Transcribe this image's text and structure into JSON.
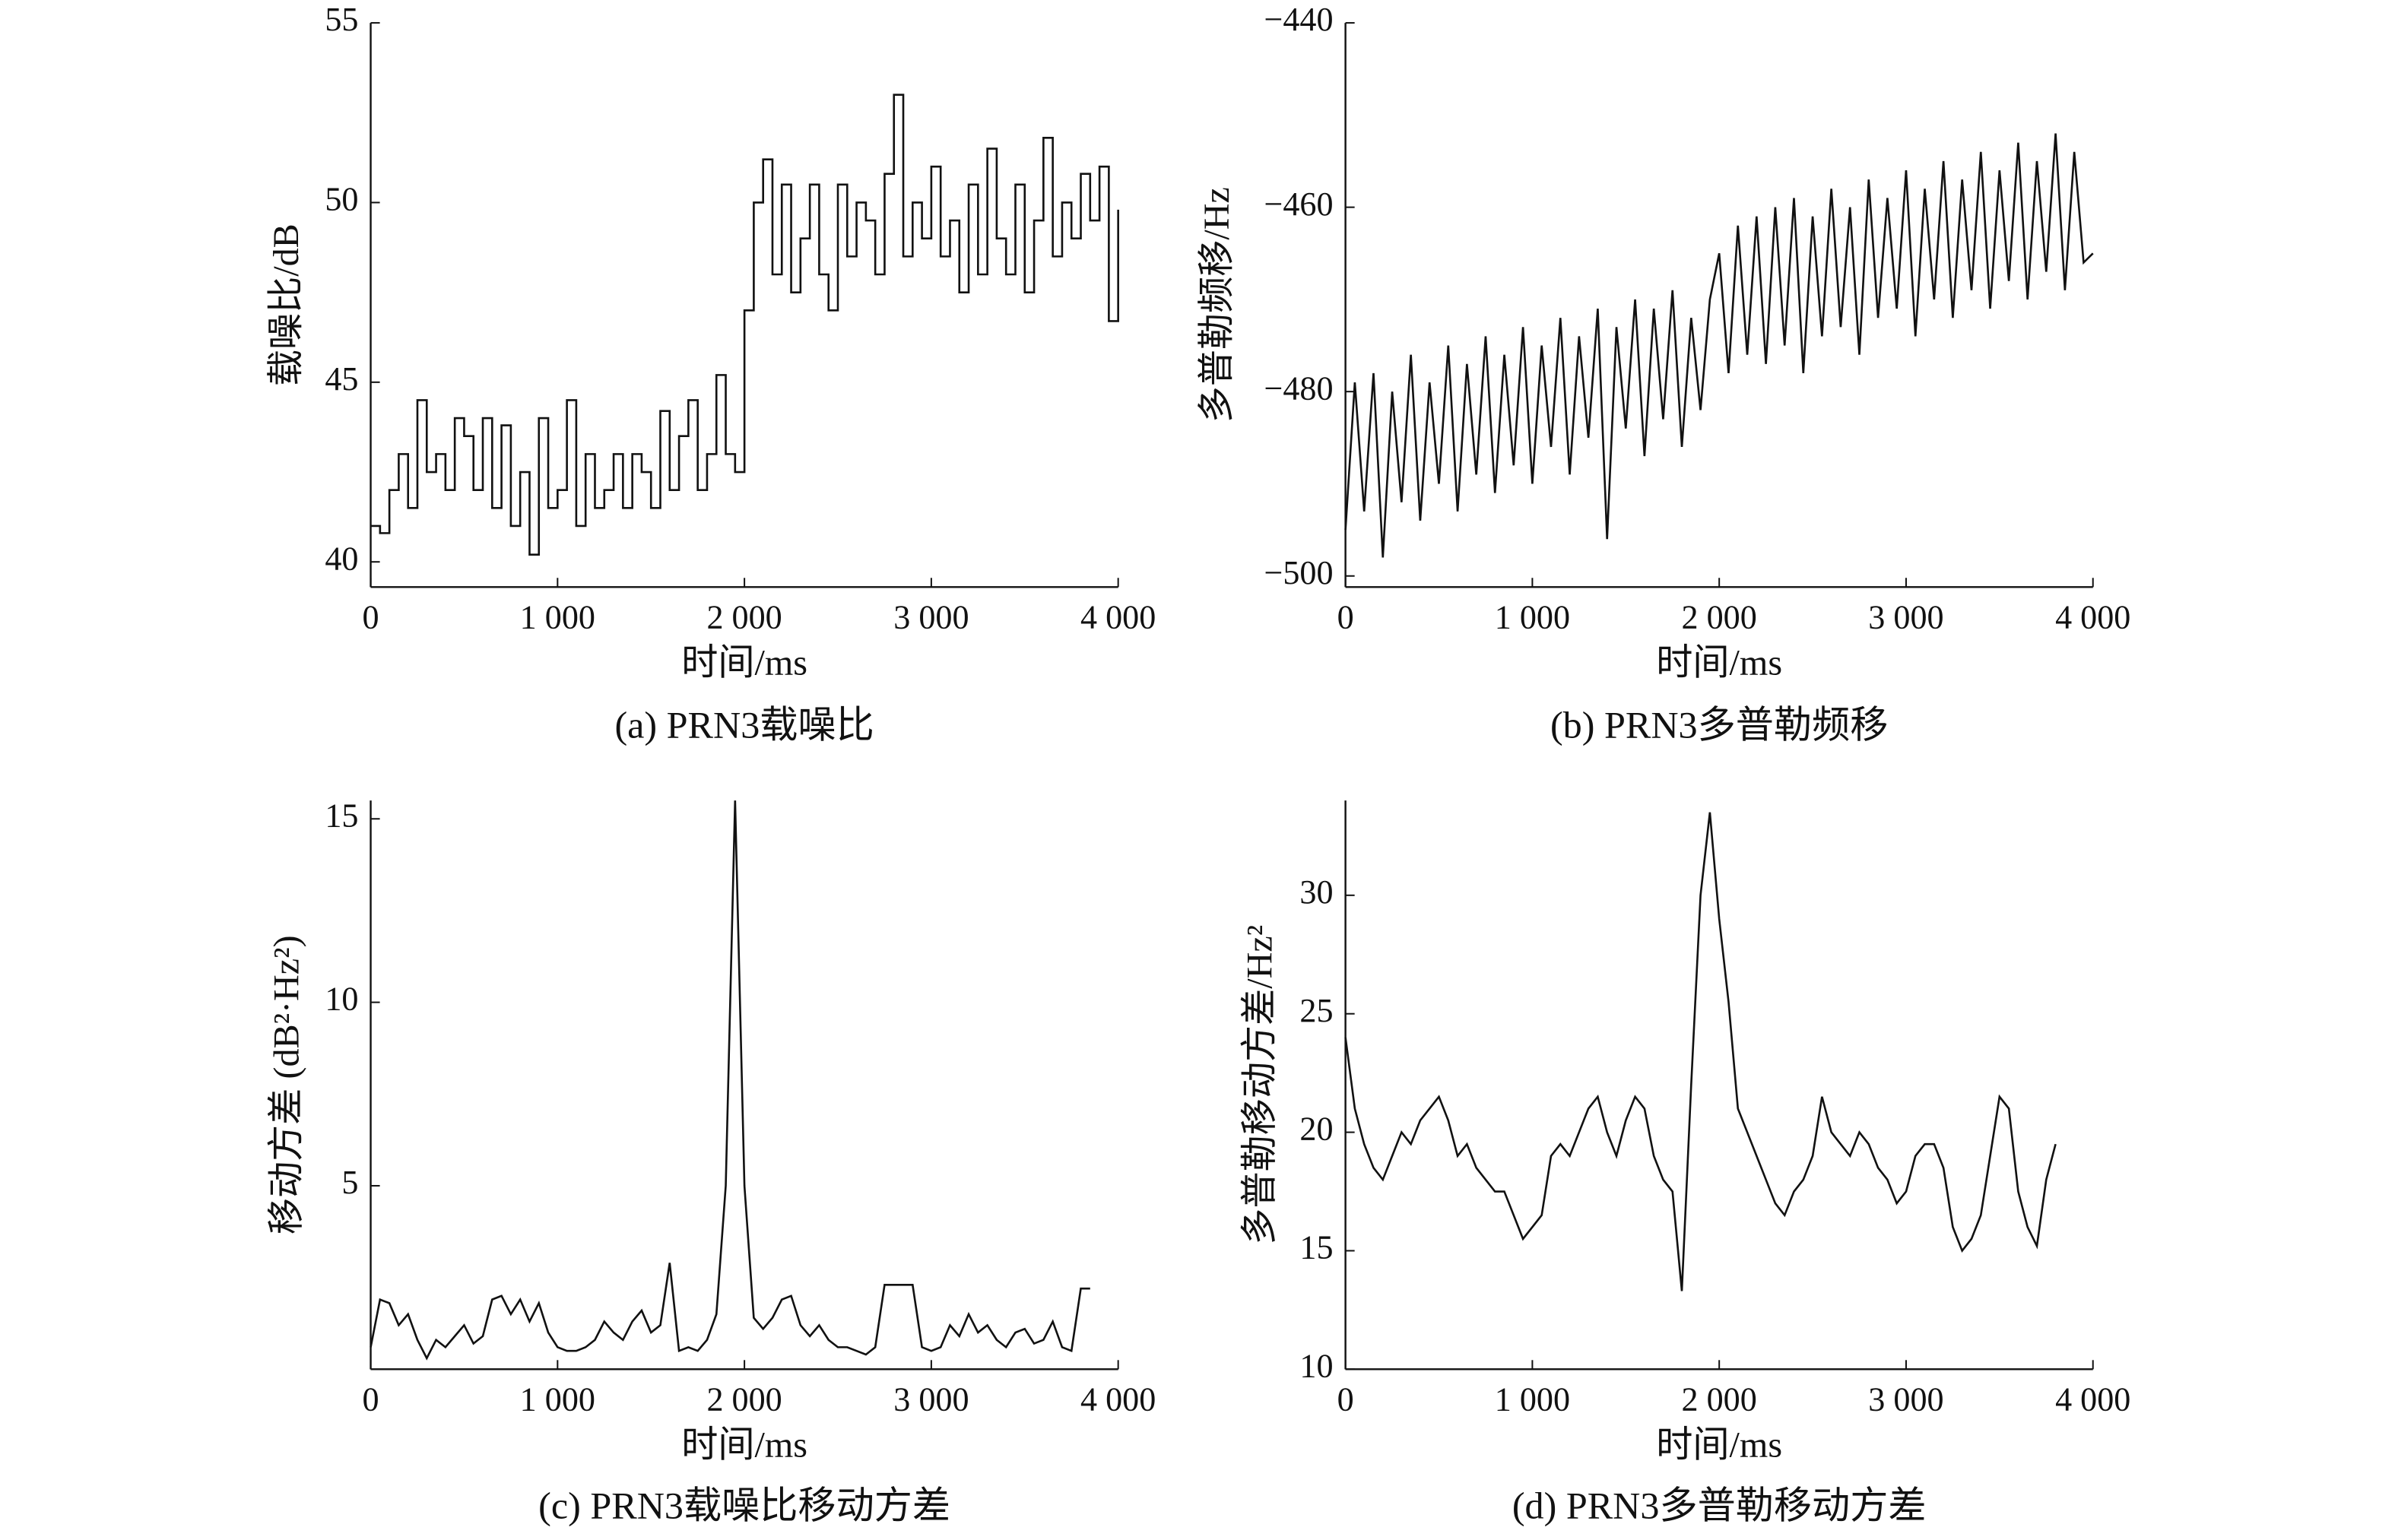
{
  "chart_data": [
    {
      "type": "line",
      "step": true,
      "color": "#111",
      "caption": "(a) PRN3载噪比",
      "xlabel": "时间/ms",
      "ylabel": "载噪比/dB",
      "xlim": [
        0,
        4000
      ],
      "ylim": [
        39.3,
        55
      ],
      "xticks": [
        0,
        {
          "value": 1000,
          "label": "1 000"
        },
        {
          "value": 2000,
          "label": "2 000"
        },
        {
          "value": 3000,
          "label": "3 000"
        },
        {
          "value": 4000,
          "label": "4 000"
        }
      ],
      "yticks": [
        40,
        45,
        50,
        55
      ],
      "series": [
        {
          "name": null,
          "color": "#111",
          "x": [
            0,
            50,
            100,
            150,
            200,
            250,
            300,
            350,
            400,
            450,
            500,
            550,
            600,
            650,
            700,
            750,
            800,
            850,
            900,
            950,
            1000,
            1050,
            1100,
            1150,
            1200,
            1250,
            1300,
            1350,
            1400,
            1450,
            1500,
            1550,
            1600,
            1650,
            1700,
            1750,
            1800,
            1850,
            1900,
            1950,
            2000,
            2050,
            2100,
            2150,
            2200,
            2250,
            2300,
            2350,
            2400,
            2450,
            2500,
            2550,
            2600,
            2650,
            2700,
            2750,
            2800,
            2850,
            2900,
            2950,
            3000,
            3050,
            3100,
            3150,
            3200,
            3250,
            3300,
            3350,
            3400,
            3450,
            3500,
            3550,
            3600,
            3650,
            3700,
            3750,
            3800,
            3850,
            3900,
            3950,
            4000
          ],
          "values": [
            41,
            40.8,
            42,
            43,
            41.5,
            44.5,
            42.5,
            43,
            42,
            44,
            43.5,
            42,
            44,
            41.5,
            43.8,
            41,
            42.5,
            40.2,
            44,
            41.5,
            42,
            44.5,
            41,
            43,
            41.5,
            42,
            43,
            41.5,
            43,
            42.5,
            41.5,
            44.2,
            42,
            43.5,
            44.5,
            42,
            43,
            45.2,
            43,
            42.5,
            47,
            50,
            51.2,
            48,
            50.5,
            47.5,
            49,
            50.5,
            48,
            47,
            50.5,
            48.5,
            50,
            49.5,
            48,
            50.8,
            53,
            48.5,
            50,
            49,
            51,
            48.5,
            49.5,
            47.5,
            50.5,
            48,
            51.5,
            49,
            48,
            50.5,
            47.5,
            49.5,
            51.8,
            48.5,
            50,
            49,
            50.8,
            49.5,
            51,
            46.7,
            49.8
          ]
        }
      ]
    },
    {
      "type": "line",
      "color": "#111",
      "caption": "(b) PRN3多普勒频移",
      "xlabel": "时间/ms",
      "ylabel": "多普勒频移/Hz",
      "xlim": [
        0,
        4000
      ],
      "ylim": [
        -501.2,
        -440
      ],
      "xticks": [
        0,
        {
          "value": 1000,
          "label": "1 000"
        },
        {
          "value": 2000,
          "label": "2 000"
        },
        {
          "value": 3000,
          "label": "3 000"
        },
        {
          "value": 4000,
          "label": "4 000"
        }
      ],
      "yticks": [
        {
          "value": -500,
          "label": "−500"
        },
        {
          "value": -480,
          "label": "−480"
        },
        {
          "value": -460,
          "label": "−460"
        },
        {
          "value": -440,
          "label": "−440"
        }
      ],
      "series": [
        {
          "name": null,
          "color": "#111",
          "x": [
            0,
            50,
            100,
            150,
            200,
            250,
            300,
            350,
            400,
            450,
            500,
            550,
            600,
            650,
            700,
            750,
            800,
            850,
            900,
            950,
            1000,
            1050,
            1100,
            1150,
            1200,
            1250,
            1300,
            1350,
            1400,
            1450,
            1500,
            1550,
            1600,
            1650,
            1700,
            1750,
            1800,
            1850,
            1900,
            1950,
            2000,
            2050,
            2100,
            2150,
            2200,
            2250,
            2300,
            2350,
            2400,
            2450,
            2500,
            2550,
            2600,
            2650,
            2700,
            2750,
            2800,
            2850,
            2900,
            2950,
            3000,
            3050,
            3100,
            3150,
            3200,
            3250,
            3300,
            3350,
            3400,
            3450,
            3500,
            3550,
            3600,
            3650,
            3700,
            3750,
            3800,
            3850,
            3900,
            3950,
            4000
          ],
          "values": [
            -495,
            -479,
            -493,
            -478,
            -498,
            -480,
            -492,
            -476,
            -494,
            -479,
            -490,
            -475,
            -493,
            -477,
            -489,
            -474,
            -491,
            -476,
            -488,
            -473,
            -490,
            -475,
            -486,
            -472,
            -489,
            -474,
            -485,
            -471,
            -496,
            -473,
            -484,
            -470,
            -487,
            -471,
            -483,
            -469,
            -486,
            -472,
            -482,
            -470,
            -465,
            -478,
            -462,
            -476,
            -461,
            -477,
            -460,
            -475,
            -459,
            -478,
            -461,
            -474,
            -458,
            -473,
            -460,
            -476,
            -457,
            -472,
            -459,
            -471,
            -456,
            -474,
            -458,
            -470,
            -455,
            -472,
            -457,
            -469,
            -454,
            -471,
            -456,
            -468,
            -453,
            -470,
            -455,
            -467,
            -452,
            -469,
            -454,
            -466,
            -465
          ]
        }
      ]
    },
    {
      "type": "line",
      "color": "#111",
      "caption": "(c) PRN3载噪比移动方差",
      "xlabel": "时间/ms",
      "ylabel": "移动方差 (dB²·Hz²)",
      "xlim": [
        0,
        4000
      ],
      "ylim": [
        0,
        15.5
      ],
      "xticks": [
        0,
        {
          "value": 1000,
          "label": "1 000"
        },
        {
          "value": 2000,
          "label": "2 000"
        },
        {
          "value": 3000,
          "label": "3 000"
        },
        {
          "value": 4000,
          "label": "4 000"
        }
      ],
      "yticks": [
        5,
        10,
        15
      ],
      "series": [
        {
          "name": null,
          "color": "#111",
          "x": [
            0,
            50,
            100,
            150,
            200,
            250,
            300,
            350,
            400,
            450,
            500,
            550,
            600,
            650,
            700,
            750,
            800,
            850,
            900,
            950,
            1000,
            1050,
            1100,
            1150,
            1200,
            1250,
            1300,
            1350,
            1400,
            1450,
            1500,
            1550,
            1600,
            1650,
            1700,
            1750,
            1800,
            1850,
            1900,
            1950,
            2000,
            2050,
            2100,
            2150,
            2200,
            2250,
            2300,
            2350,
            2400,
            2450,
            2500,
            2550,
            2600,
            2650,
            2700,
            2750,
            2800,
            2850,
            2900,
            2950,
            3000,
            3050,
            3100,
            3150,
            3200,
            3250,
            3300,
            3350,
            3400,
            3450,
            3500,
            3550,
            3600,
            3650,
            3700,
            3750,
            3800,
            3850
          ],
          "values": [
            0.6,
            1.9,
            1.8,
            1.2,
            1.5,
            0.8,
            0.3,
            0.8,
            0.6,
            0.9,
            1.2,
            0.7,
            0.9,
            1.9,
            2.0,
            1.5,
            1.9,
            1.3,
            1.8,
            1.0,
            0.6,
            0.5,
            0.5,
            0.6,
            0.8,
            1.3,
            1.0,
            0.8,
            1.3,
            1.6,
            1.0,
            1.2,
            2.9,
            0.5,
            0.6,
            0.5,
            0.8,
            1.5,
            5,
            15.5,
            5,
            1.4,
            1.1,
            1.4,
            1.9,
            2.0,
            1.2,
            0.9,
            1.2,
            0.8,
            0.6,
            0.6,
            0.5,
            0.4,
            0.6,
            2.3,
            2.3,
            2.3,
            2.3,
            0.6,
            0.5,
            0.6,
            1.2,
            0.9,
            1.5,
            1.0,
            1.2,
            0.8,
            0.6,
            1.0,
            1.1,
            0.7,
            0.8,
            1.3,
            0.6,
            0.5,
            2.2,
            2.2
          ]
        }
      ]
    },
    {
      "type": "line",
      "color": "#111",
      "caption": "(d) PRN3多普勒移动方差",
      "xlabel": "时间/ms",
      "ylabel": "多普勒移动方差/Hz²",
      "xlim": [
        0,
        4000
      ],
      "ylim": [
        10,
        34
      ],
      "xticks": [
        0,
        {
          "value": 1000,
          "label": "1 000"
        },
        {
          "value": 2000,
          "label": "2 000"
        },
        {
          "value": 3000,
          "label": "3 000"
        },
        {
          "value": 4000,
          "label": "4 000"
        }
      ],
      "yticks": [
        10,
        15,
        20,
        25,
        30
      ],
      "series": [
        {
          "name": null,
          "color": "#111",
          "x": [
            0,
            50,
            100,
            150,
            200,
            250,
            300,
            350,
            400,
            450,
            500,
            550,
            600,
            650,
            700,
            750,
            800,
            850,
            900,
            950,
            1000,
            1050,
            1100,
            1150,
            1200,
            1250,
            1300,
            1350,
            1400,
            1450,
            1500,
            1550,
            1600,
            1650,
            1700,
            1750,
            1800,
            1850,
            1900,
            1950,
            2000,
            2050,
            2100,
            2150,
            2200,
            2250,
            2300,
            2350,
            2400,
            2450,
            2500,
            2550,
            2600,
            2650,
            2700,
            2750,
            2800,
            2850,
            2900,
            2950,
            3000,
            3050,
            3100,
            3150,
            3200,
            3250,
            3300,
            3350,
            3400,
            3450,
            3500,
            3550,
            3600,
            3650,
            3700,
            3750,
            3800
          ],
          "values": [
            24,
            21,
            19.5,
            18.5,
            18,
            19,
            20,
            19.5,
            20.5,
            21,
            21.5,
            20.5,
            19,
            19.5,
            18.5,
            18,
            17.5,
            17.5,
            16.5,
            15.5,
            16,
            16.5,
            19,
            19.5,
            19,
            20,
            21,
            21.5,
            20,
            19,
            20.5,
            21.5,
            21,
            19,
            18,
            17.5,
            13.3,
            22,
            30,
            33.5,
            29,
            25.5,
            21,
            20,
            19,
            18,
            17,
            16.5,
            17.5,
            18,
            19,
            21.5,
            20,
            19.5,
            19,
            20,
            19.5,
            18.5,
            18,
            17,
            17.5,
            19,
            19.5,
            19.5,
            18.5,
            16,
            15,
            15.5,
            16.5,
            19,
            21.5,
            21,
            17.5,
            16,
            15.2,
            18,
            19.5
          ]
        }
      ]
    }
  ]
}
